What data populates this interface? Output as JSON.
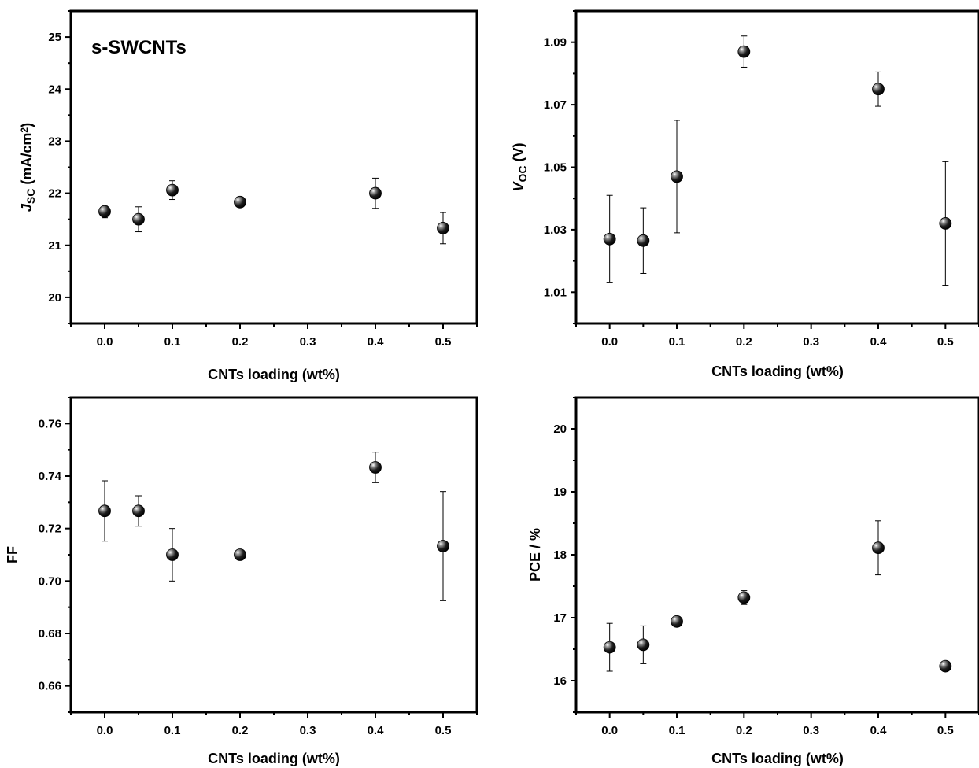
{
  "marker_color": "#000000",
  "chart_data": [
    {
      "id": "jsc",
      "type": "scatter",
      "annotation": "s-SWCNTs",
      "xlabel": "CNTs loading (wt%)",
      "ylabel_parts": [
        {
          "text": "J",
          "style": "italic"
        },
        {
          "text": "SC",
          "style": "sub"
        },
        {
          "text": " (mA/cm",
          "style": "normal"
        },
        {
          "text": "2",
          "style": "sup"
        },
        {
          "text": ")",
          "style": "normal"
        }
      ],
      "xlim": [
        -0.05,
        0.55
      ],
      "ylim": [
        19.5,
        25.5
      ],
      "x_ticks": [
        "0.0",
        "0.1",
        "0.2",
        "0.3",
        "0.4",
        "0.5"
      ],
      "y_ticks": [
        "20",
        "21",
        "22",
        "23",
        "24",
        "25"
      ],
      "x": [
        0.0,
        0.05,
        0.1,
        0.2,
        0.4,
        0.5
      ],
      "y": [
        21.65,
        21.5,
        22.06,
        21.83,
        22.0,
        21.33
      ],
      "err": [
        0.12,
        0.24,
        0.18,
        0.04,
        0.29,
        0.3
      ]
    },
    {
      "id": "voc",
      "type": "scatter",
      "xlabel": "CNTs loading (wt%)",
      "ylabel_parts": [
        {
          "text": "V",
          "style": "italic"
        },
        {
          "text": "OC",
          "style": "sub"
        },
        {
          "text": " (V)",
          "style": "normal"
        }
      ],
      "xlim": [
        -0.05,
        0.55
      ],
      "ylim": [
        1.0,
        1.1
      ],
      "x_ticks": [
        "0.0",
        "0.1",
        "0.2",
        "0.3",
        "0.4",
        "0.5"
      ],
      "y_ticks": [
        "1.01",
        "1.03",
        "1.05",
        "1.07",
        "1.09"
      ],
      "x": [
        0.0,
        0.05,
        0.1,
        0.2,
        0.4,
        0.5
      ],
      "y": [
        1.027,
        1.0265,
        1.047,
        1.087,
        1.075,
        1.032
      ],
      "err": [
        0.014,
        0.0105,
        0.018,
        0.005,
        0.0055,
        0.0198
      ]
    },
    {
      "id": "ff",
      "type": "scatter",
      "xlabel": "CNTs loading (wt%)",
      "ylabel_parts": [
        {
          "text": "FF",
          "style": "normal"
        }
      ],
      "xlim": [
        -0.05,
        0.55
      ],
      "ylim": [
        0.65,
        0.77
      ],
      "x_ticks": [
        "0.0",
        "0.1",
        "0.2",
        "0.3",
        "0.4",
        "0.5"
      ],
      "y_ticks": [
        "0.66",
        "0.68",
        "0.70",
        "0.72",
        "0.74",
        "0.76"
      ],
      "x": [
        0.0,
        0.05,
        0.1,
        0.2,
        0.4,
        0.5
      ],
      "y": [
        0.7267,
        0.7267,
        0.71,
        0.71,
        0.7433,
        0.7133
      ],
      "err": [
        0.0115,
        0.0058,
        0.01,
        0.0,
        0.0058,
        0.0208
      ]
    },
    {
      "id": "pce",
      "type": "scatter",
      "xlabel": "CNTs loading (wt%)",
      "ylabel_parts": [
        {
          "text": "PCE / %",
          "style": "normal"
        }
      ],
      "xlim": [
        -0.05,
        0.55
      ],
      "ylim": [
        15.5,
        20.5
      ],
      "x_ticks": [
        "0.0",
        "0.1",
        "0.2",
        "0.3",
        "0.4",
        "0.5"
      ],
      "y_ticks": [
        "16",
        "17",
        "18",
        "19",
        "20"
      ],
      "x": [
        0.0,
        0.05,
        0.1,
        0.2,
        0.4,
        0.5
      ],
      "y": [
        16.53,
        16.57,
        16.94,
        17.32,
        18.11,
        16.23
      ],
      "err": [
        0.38,
        0.3,
        0.07,
        0.11,
        0.43,
        0.02
      ]
    }
  ]
}
